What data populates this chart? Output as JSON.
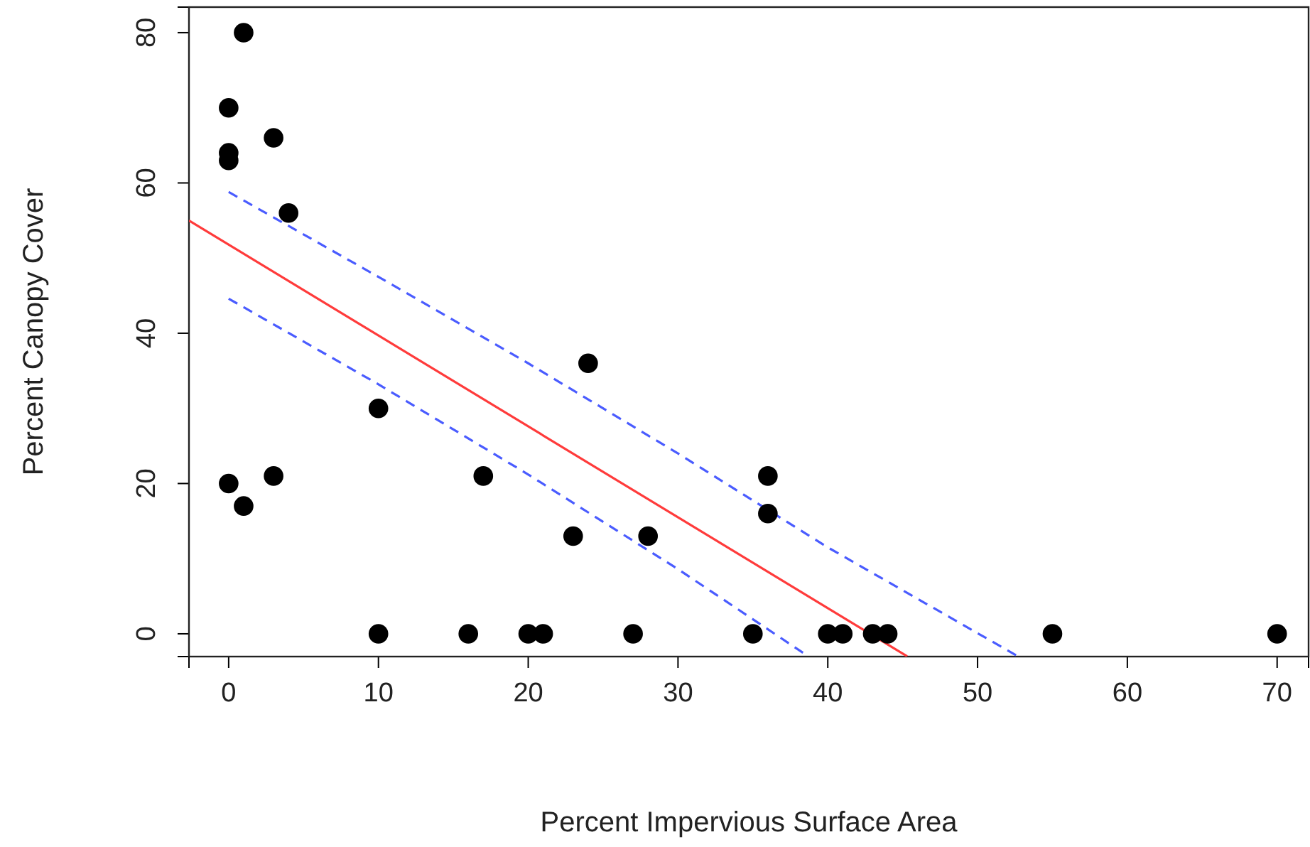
{
  "chart_data": {
    "type": "scatter",
    "xlabel": "Percent Impervious Surface Area",
    "ylabel": "Percent Canopy Cover",
    "xlim": [
      -2.65,
      72.1
    ],
    "ylim": [
      -3.03,
      83.4
    ],
    "xticks": [
      0,
      10,
      20,
      30,
      40,
      50,
      60,
      70
    ],
    "yticks": [
      0,
      20,
      40,
      60,
      80
    ],
    "grid": false,
    "series": [
      {
        "color": "#000000",
        "marker": "circle",
        "x": [
          0,
          1,
          0,
          0,
          3,
          4,
          0,
          1,
          3,
          10,
          10,
          16,
          17,
          20,
          21,
          23,
          24,
          27,
          28,
          35,
          36,
          36,
          40,
          41,
          43,
          44,
          55,
          70
        ],
        "values": [
          70,
          80,
          64,
          63,
          66,
          56,
          20,
          17,
          21,
          30,
          0,
          0,
          21,
          0,
          0,
          13,
          36,
          0,
          13,
          0,
          21,
          16,
          0,
          0,
          0,
          0,
          0,
          0
        ]
      },
      {
        "type": "line",
        "color": "#ff3b3b",
        "line_style": "solid",
        "x": [
          -2.65,
          45.3
        ],
        "values": [
          55.0,
          -3
        ]
      },
      {
        "type": "line",
        "color": "#4a5cff",
        "line_style": "dashed",
        "x": [
          0,
          10,
          20,
          30,
          40,
          52.7
        ],
        "values": [
          58.8,
          47.5,
          36.0,
          24.0,
          11.5,
          -3
        ]
      },
      {
        "type": "line",
        "color": "#4a5cff",
        "line_style": "dashed",
        "x": [
          0,
          10,
          20,
          30,
          38.7
        ],
        "values": [
          44.6,
          33.2,
          21.2,
          8.6,
          -3
        ]
      }
    ]
  }
}
